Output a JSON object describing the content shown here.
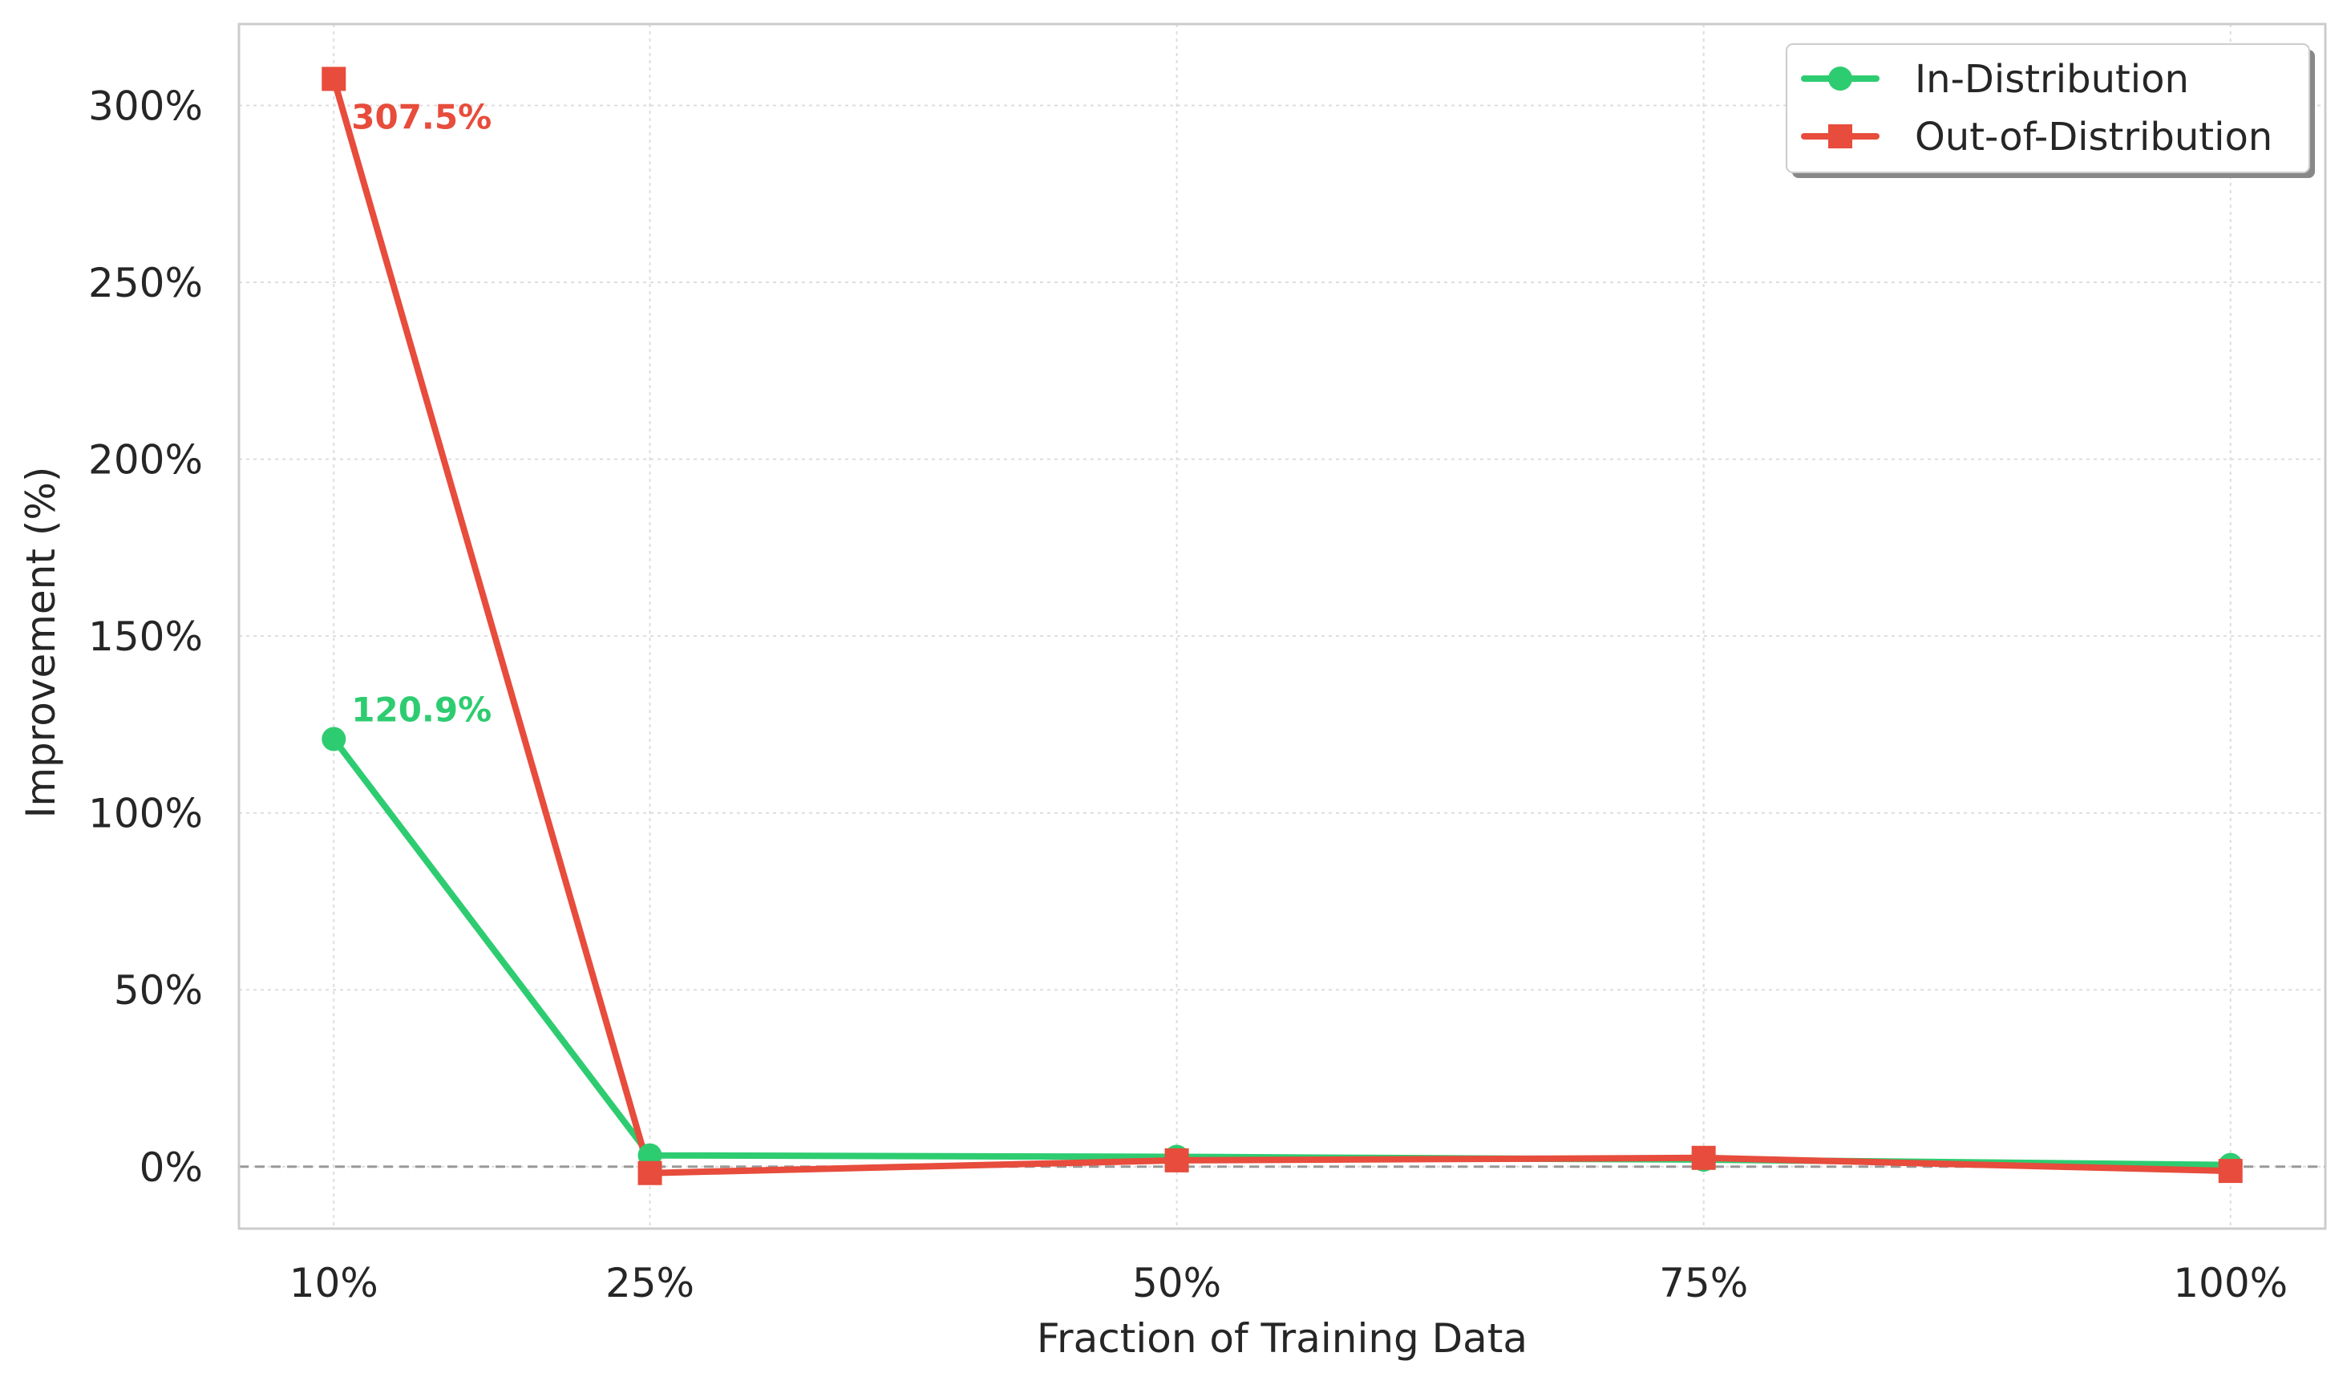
{
  "chart_data": {
    "type": "line",
    "categories": [
      "10%",
      "25%",
      "50%",
      "75%",
      "100%"
    ],
    "x": [
      10,
      25,
      50,
      75,
      100
    ],
    "series": [
      {
        "name": "In-Distribution",
        "values": [
          120.9,
          3.2,
          2.8,
          2.0,
          0.5
        ],
        "color": "#2ecc71",
        "marker": "circle"
      },
      {
        "name": "Out-of-Distribution",
        "values": [
          307.5,
          -1.8,
          1.8,
          2.5,
          -1.2
        ],
        "color": "#e74c3c",
        "marker": "square"
      }
    ],
    "annotations": [
      {
        "series": 0,
        "index": 0,
        "text": "120.9%",
        "color": "#2ecc71"
      },
      {
        "series": 1,
        "index": 0,
        "text": "307.5%",
        "color": "#e74c3c"
      }
    ],
    "title": "",
    "xlabel": "Fraction of Training Data",
    "ylabel": "Improvement (%)",
    "xlim": [
      5.5,
      104.5
    ],
    "ylim": [
      -17.5,
      323
    ],
    "yticks": [
      0,
      50,
      100,
      150,
      200,
      250,
      300
    ],
    "ytick_labels": [
      "0%",
      "50%",
      "100%",
      "150%",
      "200%",
      "250%",
      "300%"
    ],
    "reference_line": {
      "y": 0,
      "style": "dashed",
      "color": "#999999"
    },
    "grid": true,
    "legend_position": "top-right"
  }
}
